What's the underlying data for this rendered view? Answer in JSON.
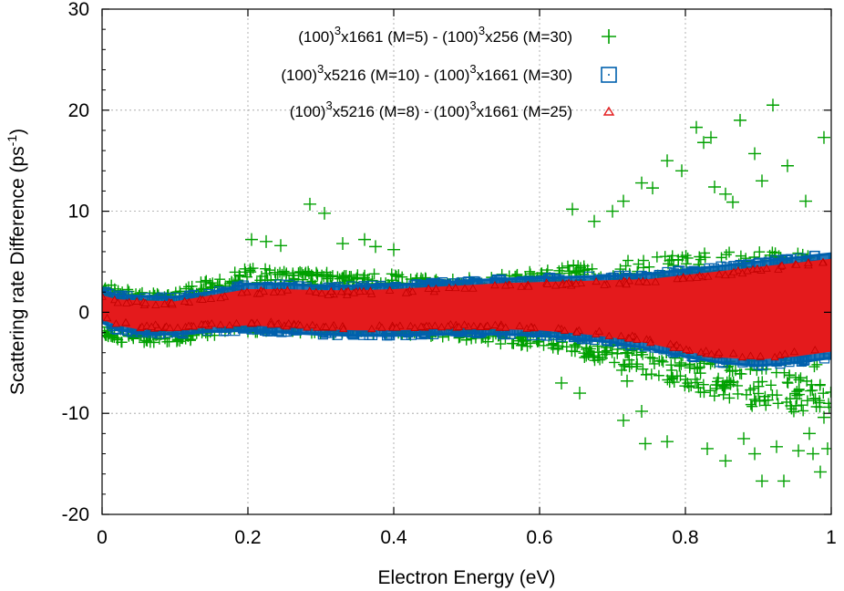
{
  "chart_data": {
    "type": "scatter",
    "title": "",
    "xlabel": "Electron Energy (eV)",
    "ylabel": {
      "main": "Scattering rate Difference (ps",
      "sup": "-1",
      "tail": ")"
    },
    "xlim": [
      0,
      1
    ],
    "ylim": [
      -20,
      30
    ],
    "grid": true,
    "legend_position": "top-right",
    "x_ticks": [
      {
        "value": 0,
        "label": "0"
      },
      {
        "value": 0.2,
        "label": "0.2"
      },
      {
        "value": 0.4,
        "label": "0.4"
      },
      {
        "value": 0.6,
        "label": "0.6"
      },
      {
        "value": 0.8,
        "label": "0.8"
      },
      {
        "value": 1,
        "label": "1"
      }
    ],
    "y_ticks": [
      {
        "value": -20,
        "label": "-20"
      },
      {
        "value": -10,
        "label": "-10"
      },
      {
        "value": 0,
        "label": "0"
      },
      {
        "value": 10,
        "label": "10"
      },
      {
        "value": 20,
        "label": "20"
      },
      {
        "value": 30,
        "label": "30"
      }
    ],
    "series": [
      {
        "name": "(100)3x1661 (M=5) - (100)3x256 (M=30)",
        "legend_parts": [
          {
            "text": "(100)"
          },
          {
            "text": "3",
            "sup": true
          },
          {
            "text": "x1661 (M=5) - (100)"
          },
          {
            "text": "3",
            "sup": true
          },
          {
            "text": "x256 (M=30)"
          }
        ],
        "marker": "plus",
        "color": "#00a000",
        "band": [
          [
            0.0,
            -2.8,
            3.0
          ],
          [
            0.05,
            -3.2,
            2.0
          ],
          [
            0.1,
            -3.0,
            2.0
          ],
          [
            0.15,
            -2.6,
            3.5
          ],
          [
            0.2,
            -2.0,
            4.5
          ],
          [
            0.25,
            -2.0,
            4.2
          ],
          [
            0.3,
            -2.2,
            4.0
          ],
          [
            0.35,
            -2.3,
            3.8
          ],
          [
            0.4,
            -2.3,
            3.8
          ],
          [
            0.45,
            -2.5,
            3.5
          ],
          [
            0.5,
            -2.8,
            3.5
          ],
          [
            0.55,
            -3.2,
            3.8
          ],
          [
            0.6,
            -3.6,
            4.2
          ],
          [
            0.65,
            -4.5,
            4.8
          ],
          [
            0.7,
            -5.5,
            5.2
          ],
          [
            0.75,
            -6.5,
            5.5
          ],
          [
            0.8,
            -7.5,
            5.8
          ],
          [
            0.85,
            -8.5,
            6.0
          ],
          [
            0.9,
            -9.5,
            6.0
          ],
          [
            0.95,
            -10.0,
            6.0
          ],
          [
            1.0,
            -10.5,
            6.0
          ]
        ],
        "outliers": [
          [
            0.205,
            7.2
          ],
          [
            0.225,
            7.0
          ],
          [
            0.245,
            6.6
          ],
          [
            0.285,
            10.7
          ],
          [
            0.305,
            9.8
          ],
          [
            0.33,
            6.8
          ],
          [
            0.36,
            7.2
          ],
          [
            0.375,
            6.5
          ],
          [
            0.4,
            6.2
          ],
          [
            0.645,
            10.2
          ],
          [
            0.675,
            9.0
          ],
          [
            0.7,
            10.0
          ],
          [
            0.715,
            11.0
          ],
          [
            0.74,
            12.8
          ],
          [
            0.755,
            12.3
          ],
          [
            0.775,
            15.0
          ],
          [
            0.795,
            14.0
          ],
          [
            0.815,
            18.3
          ],
          [
            0.825,
            16.8
          ],
          [
            0.835,
            17.3
          ],
          [
            0.84,
            12.4
          ],
          [
            0.855,
            11.7
          ],
          [
            0.865,
            10.9
          ],
          [
            0.875,
            19.0
          ],
          [
            0.895,
            15.7
          ],
          [
            0.905,
            13.0
          ],
          [
            0.92,
            20.5
          ],
          [
            0.94,
            14.5
          ],
          [
            0.965,
            11.0
          ],
          [
            0.99,
            17.3
          ],
          [
            0.715,
            -10.7
          ],
          [
            0.74,
            -9.8
          ],
          [
            0.745,
            -13.0
          ],
          [
            0.775,
            -12.8
          ],
          [
            0.83,
            -13.5
          ],
          [
            0.855,
            -14.7
          ],
          [
            0.895,
            -14.0
          ],
          [
            0.905,
            -16.7
          ],
          [
            0.925,
            -13.3
          ],
          [
            0.935,
            -16.7
          ],
          [
            0.955,
            -13.7
          ],
          [
            0.975,
            -14.0
          ],
          [
            0.985,
            -15.8
          ],
          [
            0.995,
            -13.5
          ],
          [
            0.97,
            -12.0
          ],
          [
            0.99,
            -10.4
          ],
          [
            0.655,
            -8.0
          ],
          [
            0.63,
            -7.0
          ],
          [
            0.88,
            -12.5
          ],
          [
            0.72,
            -6.8
          ]
        ]
      },
      {
        "name": "(100)3x5216 (M=10) - (100)3x1661 (M=30)",
        "legend_parts": [
          {
            "text": "(100)"
          },
          {
            "text": "3",
            "sup": true
          },
          {
            "text": "x5216 (M=10) - (100)"
          },
          {
            "text": "3",
            "sup": true
          },
          {
            "text": "x1661 (M=30)"
          }
        ],
        "marker": "square",
        "color": "#0060ad",
        "band": [
          [
            0.0,
            -1.0,
            2.2
          ],
          [
            0.02,
            -1.7,
            1.7
          ],
          [
            0.05,
            -2.1,
            1.6
          ],
          [
            0.1,
            -2.2,
            1.5
          ],
          [
            0.15,
            -1.9,
            2.0
          ],
          [
            0.2,
            -1.8,
            2.8
          ],
          [
            0.25,
            -2.0,
            2.8
          ],
          [
            0.3,
            -2.2,
            2.6
          ],
          [
            0.35,
            -2.3,
            2.6
          ],
          [
            0.4,
            -2.3,
            2.7
          ],
          [
            0.45,
            -2.2,
            2.9
          ],
          [
            0.5,
            -2.1,
            3.1
          ],
          [
            0.55,
            -2.2,
            3.3
          ],
          [
            0.6,
            -2.3,
            3.4
          ],
          [
            0.65,
            -2.6,
            3.5
          ],
          [
            0.7,
            -3.0,
            3.6
          ],
          [
            0.75,
            -3.6,
            3.8
          ],
          [
            0.8,
            -4.4,
            4.2
          ],
          [
            0.85,
            -5.0,
            4.6
          ],
          [
            0.9,
            -5.3,
            5.0
          ],
          [
            0.95,
            -5.0,
            5.4
          ],
          [
            1.0,
            -4.5,
            5.8
          ]
        ]
      },
      {
        "name": "(100)3x5216 (M=8) - (100)3x1661 (M=25)",
        "legend_parts": [
          {
            "text": "(100)"
          },
          {
            "text": "3",
            "sup": true
          },
          {
            "text": "x5216 (M=8) - (100)"
          },
          {
            "text": "3",
            "sup": true
          },
          {
            "text": "x1661 (M=25)"
          }
        ],
        "marker": "triangle",
        "color": "#e41a1c",
        "band": [
          [
            0.0,
            -0.6,
            1.6
          ],
          [
            0.02,
            -1.2,
            1.2
          ],
          [
            0.05,
            -1.6,
            1.1
          ],
          [
            0.1,
            -1.7,
            1.0
          ],
          [
            0.15,
            -1.4,
            1.6
          ],
          [
            0.2,
            -1.2,
            2.2
          ],
          [
            0.25,
            -1.4,
            2.2
          ],
          [
            0.3,
            -1.6,
            2.1
          ],
          [
            0.35,
            -1.7,
            2.1
          ],
          [
            0.4,
            -1.7,
            2.2
          ],
          [
            0.45,
            -1.6,
            2.4
          ],
          [
            0.5,
            -1.5,
            2.6
          ],
          [
            0.55,
            -1.6,
            2.8
          ],
          [
            0.6,
            -1.7,
            2.9
          ],
          [
            0.65,
            -2.0,
            3.0
          ],
          [
            0.7,
            -2.4,
            3.1
          ],
          [
            0.75,
            -3.0,
            3.2
          ],
          [
            0.8,
            -3.8,
            3.6
          ],
          [
            0.85,
            -4.4,
            4.0
          ],
          [
            0.9,
            -4.6,
            4.4
          ],
          [
            0.95,
            -4.3,
            4.8
          ],
          [
            1.0,
            -3.8,
            5.2
          ]
        ]
      }
    ]
  }
}
